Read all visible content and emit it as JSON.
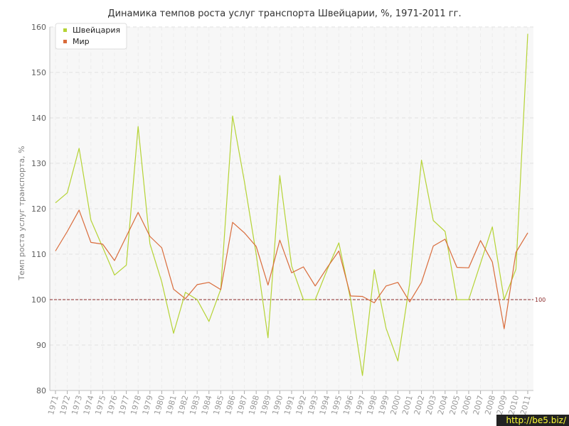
{
  "chart_data": {
    "type": "line",
    "title": "Динамика темпов роста услуг транспорта Швейцарии, %, 1971-2011 гг.",
    "xlabel": "",
    "ylabel": "Темп роста услуг транспорта, %",
    "ylim": [
      80,
      160
    ],
    "yticks": [
      80,
      90,
      100,
      110,
      120,
      130,
      140,
      150,
      160
    ],
    "grid": true,
    "legend_position": "top-left",
    "x": [
      "1971",
      "1972",
      "1973",
      "1974",
      "1975",
      "1976",
      "1977",
      "1978",
      "1979",
      "1980",
      "1981",
      "1982",
      "1983",
      "1984",
      "1985",
      "1986",
      "1987",
      "1988",
      "1989",
      "1990",
      "1991",
      "1992",
      "1993",
      "1994",
      "1995",
      "1996",
      "1997",
      "1998",
      "1999",
      "2000",
      "2001",
      "2002",
      "2003",
      "2004",
      "2005",
      "2006",
      "2007",
      "2008",
      "2009",
      "2010",
      "2011"
    ],
    "series": [
      {
        "name": "Швейцария",
        "color": "#b5d335",
        "values": [
          121.3,
          123.5,
          133.3,
          117.5,
          111.5,
          105.4,
          107.6,
          138.1,
          112.3,
          103.9,
          92.6,
          101.6,
          100.0,
          95.2,
          102.3,
          140.4,
          126.0,
          110.0,
          91.6,
          127.3,
          107.4,
          100.0,
          100.0,
          106.5,
          112.5,
          100.0,
          83.3,
          106.6,
          93.7,
          86.5,
          103.6,
          130.7,
          117.4,
          115.0,
          100.0,
          100.0,
          108.0,
          116.0,
          100.0,
          106.7,
          158.5
        ]
      },
      {
        "name": "Мир",
        "color": "#d96b3a",
        "values": [
          110.7,
          115.0,
          119.7,
          112.6,
          112.2,
          108.6,
          113.9,
          119.2,
          113.9,
          111.4,
          102.3,
          100.2,
          103.3,
          103.8,
          102.2,
          117.0,
          114.7,
          111.7,
          103.2,
          113.1,
          105.9,
          107.2,
          103.0,
          107.0,
          110.7,
          100.8,
          100.7,
          99.3,
          103.0,
          103.8,
          99.5,
          103.8,
          111.8,
          113.3,
          107.1,
          107.0,
          113.0,
          108.3,
          93.6,
          110.4,
          114.7
        ]
      }
    ],
    "reference_line": {
      "value": 100,
      "label": "100",
      "color": "#8b2a2a"
    }
  },
  "watermark": "http://be5.biz/"
}
